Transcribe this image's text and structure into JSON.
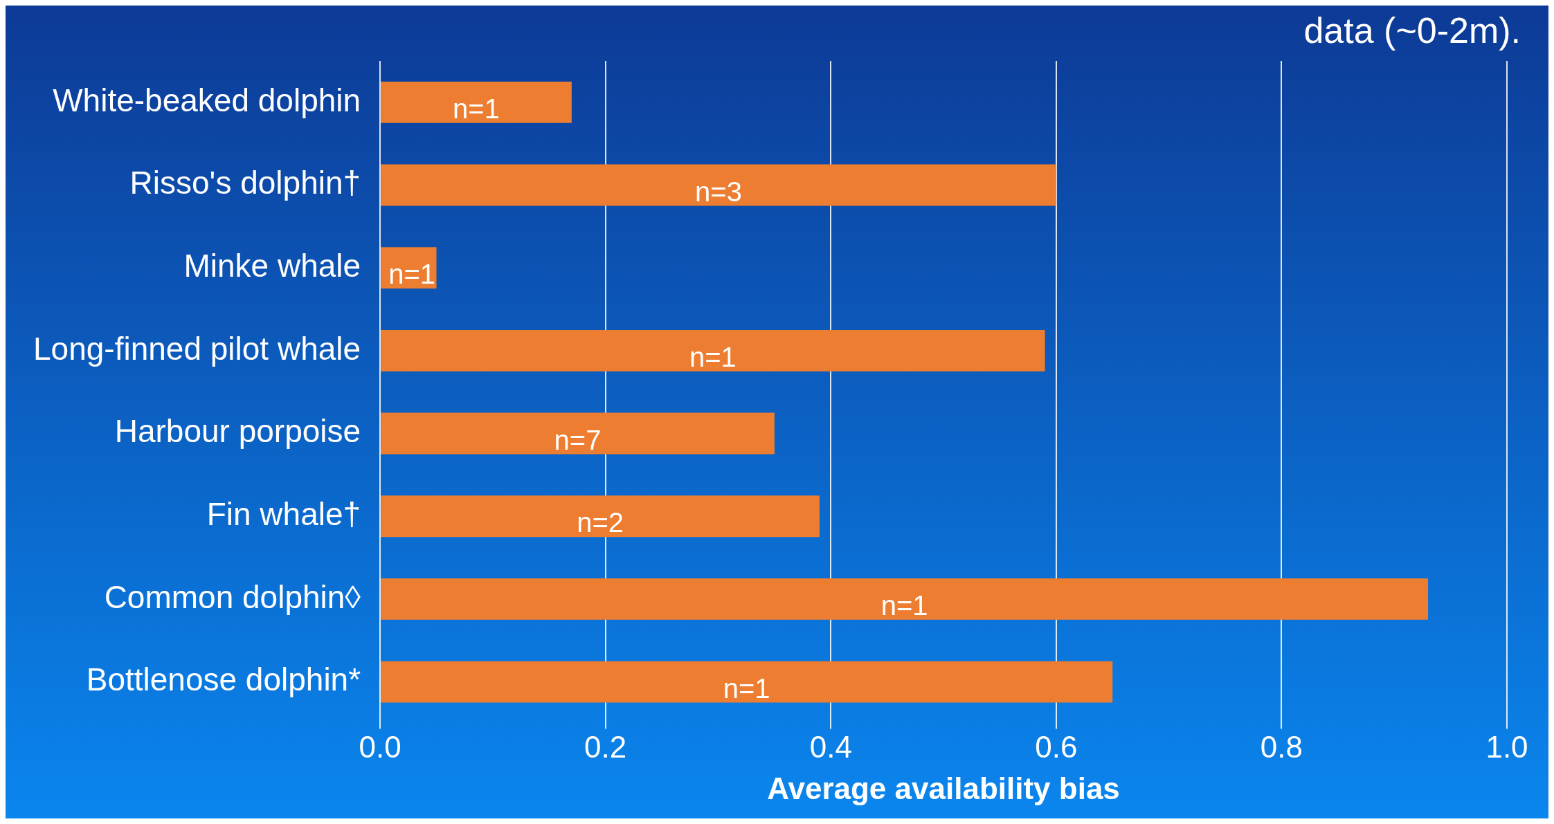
{
  "chart_data": {
    "type": "bar",
    "orientation": "horizontal",
    "xlabel": "Average availability bias",
    "categories": [
      "White-beaked dolphin",
      "Risso's dolphin†",
      "Minke whale",
      "Long-finned pilot whale",
      "Harbour porpoise",
      "Fin whale†",
      "Common dolphin◊",
      "Bottlenose dolphin*"
    ],
    "values": [
      0.17,
      0.6,
      0.05,
      0.59,
      0.35,
      0.39,
      0.93,
      0.65
    ],
    "color": "#ed7d31",
    "xlim": [
      0,
      1
    ],
    "xticks": [
      {
        "value": 0,
        "label": "0.0"
      },
      {
        "value": 0.2,
        "label": "0.2"
      },
      {
        "value": 0.4,
        "label": "0.4"
      },
      {
        "value": 0.6,
        "label": "0.6"
      },
      {
        "value": 0.8,
        "label": "0.8"
      },
      {
        "value": 1,
        "label": "1.0"
      }
    ],
    "grid": "x",
    "annotations": [
      "data (~0-2m).",
      "n=1",
      "n=3",
      "n=1",
      "n=1",
      "n=7",
      "n=2",
      "n=1",
      "n=1"
    ]
  }
}
